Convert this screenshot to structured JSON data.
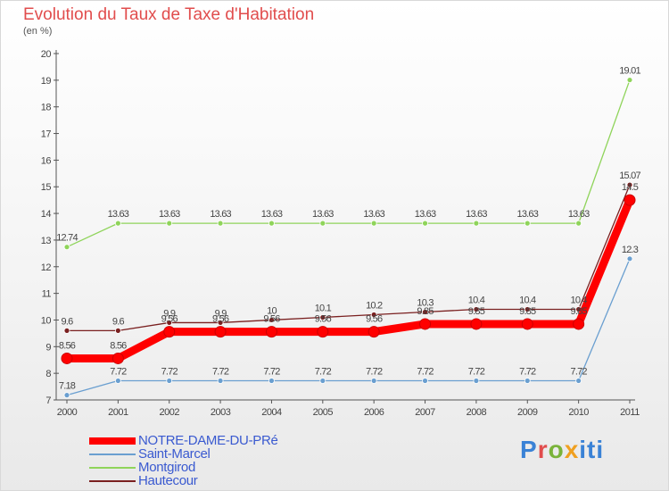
{
  "title": "Evolution du Taux de Taxe d'Habitation",
  "subtitle": "(en %)",
  "logo": "Proxiti",
  "chart_data": {
    "type": "line",
    "title": "Evolution du Taux de Taxe d'Habitation",
    "subtitle": "(en %)",
    "x": [
      "2000",
      "2001",
      "2002",
      "2003",
      "2004",
      "2005",
      "2006",
      "2007",
      "2008",
      "2009",
      "2010",
      "2011"
    ],
    "ylim": [
      7,
      20
    ],
    "yticks": [
      "7",
      "8",
      "9",
      "10",
      "11",
      "12",
      "13",
      "14",
      "15",
      "16",
      "17",
      "18",
      "19",
      "20"
    ],
    "grid": false,
    "legend": "bottom-left",
    "series": [
      {
        "name": "NOTRE-DAME-DU-PRé",
        "color": "#ff0000",
        "values": [
          8.56,
          8.56,
          9.56,
          9.56,
          9.56,
          9.56,
          9.56,
          9.85,
          9.85,
          9.85,
          9.85,
          14.5
        ],
        "labels": [
          "8.56",
          "8.56",
          "9.56",
          "9.56",
          "9.56",
          "9.56",
          "9.56",
          "9.85",
          "9.85",
          "9.85",
          "9.85",
          "14.5"
        ]
      },
      {
        "name": "Saint-Marcel",
        "color": "#6a9fd0",
        "values": [
          7.18,
          7.72,
          7.72,
          7.72,
          7.72,
          7.72,
          7.72,
          7.72,
          7.72,
          7.72,
          7.72,
          12.3
        ],
        "labels": [
          "7.18",
          "7.72",
          "7.72",
          "7.72",
          "7.72",
          "7.72",
          "7.72",
          "7.72",
          "7.72",
          "7.72",
          "7.72",
          "12.3"
        ]
      },
      {
        "name": "Montgirod",
        "color": "#8fd45a",
        "values": [
          12.74,
          13.63,
          13.63,
          13.63,
          13.63,
          13.63,
          13.63,
          13.63,
          13.63,
          13.63,
          13.63,
          19.01
        ],
        "labels": [
          "12.74",
          "13.63",
          "13.63",
          "13.63",
          "13.63",
          "13.63",
          "13.63",
          "13.63",
          "13.63",
          "13.63",
          "13.63",
          "19.01"
        ]
      },
      {
        "name": "Hautecour",
        "color": "#7a2020",
        "values": [
          9.6,
          9.6,
          9.9,
          9.9,
          10,
          10.1,
          10.2,
          10.3,
          10.4,
          10.4,
          10.4,
          15.07
        ],
        "labels": [
          "9.6",
          "9.6",
          "9.9",
          "9.9",
          "10",
          "10.1",
          "10.2",
          "10.3",
          "10.4",
          "10.4",
          "10.4",
          "15.07"
        ]
      }
    ]
  }
}
